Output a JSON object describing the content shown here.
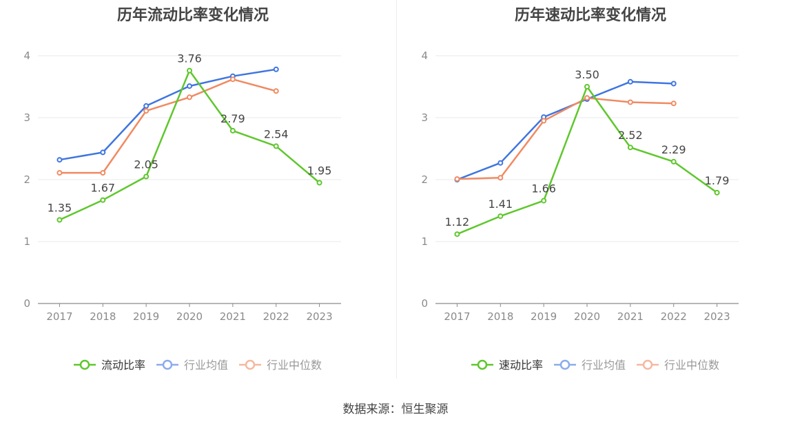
{
  "source_note": "数据来源：恒生聚源",
  "colors": {
    "main": "#5ec72c",
    "avg": "#3f75e0",
    "median": "#f08a62",
    "axis": "#8a8a8a",
    "grid": "#e8e8e8",
    "label": "#444444"
  },
  "chart_data": [
    {
      "type": "line",
      "title": "历年流动比率变化情况",
      "categories": [
        "2017",
        "2018",
        "2019",
        "2020",
        "2021",
        "2022",
        "2023"
      ],
      "ylim": [
        0,
        4
      ],
      "yticks": [
        0,
        1,
        2,
        3,
        4
      ],
      "grid": true,
      "legend_position": "bottom",
      "series": [
        {
          "name": "流动比率",
          "key": "main",
          "values": [
            1.35,
            1.67,
            2.05,
            3.76,
            2.79,
            2.54,
            1.95
          ],
          "data_labels": [
            "1.35",
            "1.67",
            "2.05",
            "3.76",
            "2.79",
            "2.54",
            "1.95"
          ]
        },
        {
          "name": "行业均值",
          "key": "avg",
          "values": [
            2.32,
            2.44,
            3.19,
            3.51,
            3.67,
            3.78,
            null
          ]
        },
        {
          "name": "行业中位数",
          "key": "median",
          "values": [
            2.11,
            2.11,
            3.11,
            3.33,
            3.62,
            3.43,
            null
          ]
        }
      ]
    },
    {
      "type": "line",
      "title": "历年速动比率变化情况",
      "categories": [
        "2017",
        "2018",
        "2019",
        "2020",
        "2021",
        "2022",
        "2023"
      ],
      "ylim": [
        0,
        4
      ],
      "yticks": [
        0,
        1,
        2,
        3,
        4
      ],
      "grid": true,
      "legend_position": "bottom",
      "series": [
        {
          "name": "速动比率",
          "key": "main",
          "values": [
            1.12,
            1.41,
            1.66,
            3.5,
            2.52,
            2.29,
            1.79
          ],
          "data_labels": [
            "1.12",
            "1.41",
            "1.66",
            "3.50",
            "2.52",
            "2.29",
            "1.79"
          ]
        },
        {
          "name": "行业均值",
          "key": "avg",
          "values": [
            2.0,
            2.27,
            3.01,
            3.3,
            3.58,
            3.55,
            null
          ]
        },
        {
          "name": "行业中位数",
          "key": "median",
          "values": [
            2.01,
            2.03,
            2.95,
            3.32,
            3.25,
            3.23,
            null
          ]
        }
      ]
    }
  ]
}
